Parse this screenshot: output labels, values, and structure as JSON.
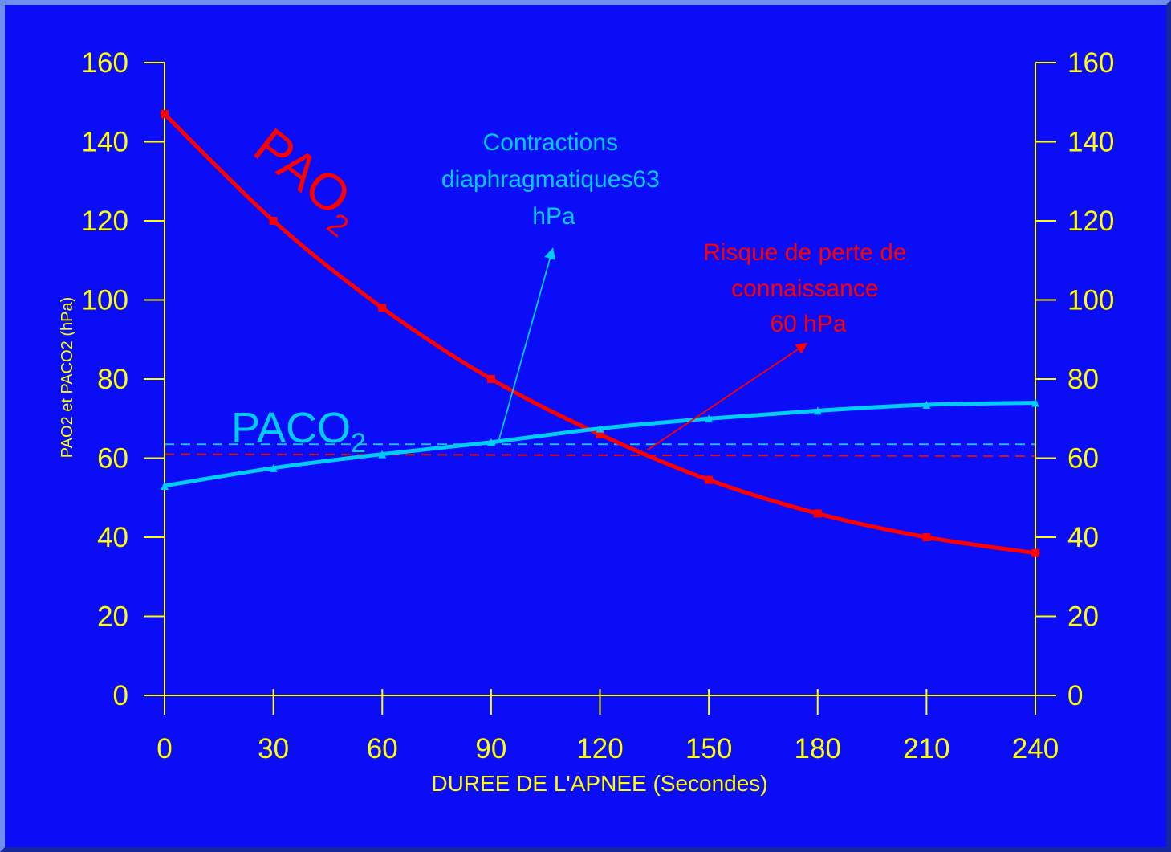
{
  "chart_data": {
    "type": "line",
    "xlabel": "DUREE DE L'APNEE (Secondes)",
    "ylabel": "PAO2 et PACO2  (hPa)",
    "x": [
      0,
      30,
      60,
      90,
      120,
      150,
      180,
      210,
      240
    ],
    "xlim": [
      0,
      240
    ],
    "ylim": [
      0,
      160
    ],
    "y_ticks": [
      0,
      20,
      40,
      60,
      80,
      100,
      120,
      140,
      160
    ],
    "secondary_y_ticks": [
      0,
      20,
      40,
      60,
      80,
      100,
      120,
      140,
      160
    ],
    "grid": false,
    "series": [
      {
        "name": "PAO",
        "name_subscript": "2",
        "values": [
          147,
          120,
          98,
          80,
          66,
          54.5,
          46,
          40,
          36
        ],
        "color": "#ff0000",
        "marker": "square"
      },
      {
        "name": "PACO",
        "name_subscript": "2",
        "values": [
          53,
          57.5,
          61,
          64,
          67.5,
          70,
          72,
          73.5,
          74
        ],
        "color": "#00ccff",
        "marker": "triangle"
      }
    ],
    "reference_lines": [
      {
        "y": 63.5,
        "color": "#22bbee",
        "style": "dashed"
      },
      {
        "y": 61,
        "y_end": 60.5,
        "color": "#dd1111",
        "style": "dashed"
      }
    ],
    "annotations": [
      {
        "lines": [
          "Contractions",
          "diaphragmatiques63",
          "hPa"
        ],
        "color": "#00ccff",
        "arrow_from": [
          92,
          64
        ],
        "arrow_to": [
          107,
          113
        ]
      },
      {
        "lines": [
          "Risque de perte de",
          "connaissance",
          "60 hPa"
        ],
        "color": "#ff0000",
        "arrow_from": [
          133,
          62
        ],
        "arrow_to": [
          177,
          89
        ]
      }
    ],
    "colors": {
      "background": "#0a0df5",
      "axis": "#ffff00",
      "tick_labels": "#ffff00"
    }
  }
}
